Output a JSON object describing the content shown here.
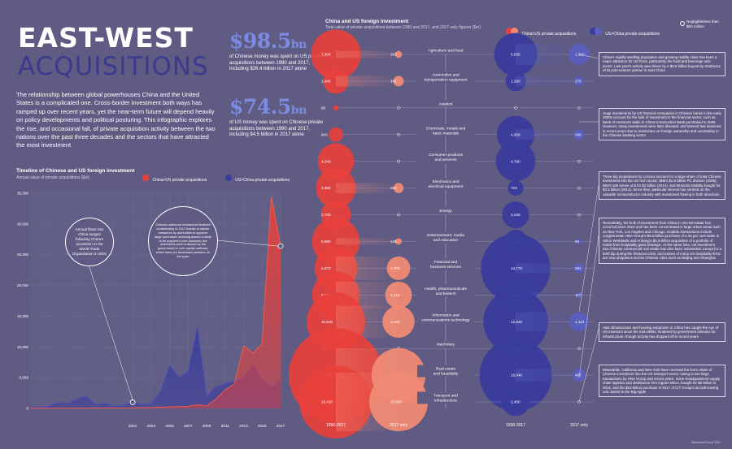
{
  "header": {
    "title_line1": "EAST-WEST",
    "title_line2_pre": "ACQ",
    "title_line2_hl": "UISITIONS",
    "intro": "The relationship between global powerhouses China and the United States is a complicated one. Cross-border investment both ways has ramped up over recent years, yet the near-term future will depend heavily on policy developments and political posturing. This infographic explores the rise, and occasional fall, of private acquisition activity between the two nations over the past three decades and the sectors that have attracted the most investment"
  },
  "stats": {
    "stat1_value": "$98.5",
    "stat1_unit": "bn",
    "stat1_text": "of Chinese money was spent on US private acquisitions between 1990 and 2017, including $26.4 billion in 2017 alone",
    "stat2_value": "$74.5",
    "stat2_unit": "bn",
    "stat2_text": "of US money was spent on Chinese private acquisitions between 1990 and 2017, including $4.5 billion in 2017 alone"
  },
  "colors": {
    "background": "#5f5b83",
    "china_us": "#e8403b",
    "us_china": "#3a3c9c",
    "china_us_light": "#f08a74",
    "us_china_light": "#5a5fc0"
  },
  "chart_data": [
    {
      "type": "area",
      "title": "Timeline of Chinese and US foreign investment",
      "subtitle": "Annual value of private acquisitions ($m)",
      "legend": [
        "China>US private acquisitions",
        "US>China private acquisitions"
      ],
      "x": [
        1990,
        1991,
        1992,
        1993,
        1994,
        1995,
        1996,
        1997,
        1998,
        1999,
        2000,
        2001,
        2002,
        2003,
        2004,
        2005,
        2006,
        2007,
        2008,
        2009,
        2010,
        2011,
        2012,
        2013,
        2014,
        2015,
        2016,
        2017
      ],
      "xticks": [
        "2001",
        "2003",
        "2005",
        "2007",
        "2009",
        "2011",
        "2013",
        "2015",
        "2017"
      ],
      "yticks": [
        "0",
        "5,000",
        "10,000",
        "15,000",
        "20,000",
        "25,000",
        "30,000",
        "35,000"
      ],
      "ylim": [
        0,
        35000
      ],
      "series": [
        {
          "name": "China>US private acquisitions",
          "values": [
            20,
            40,
            30,
            50,
            40,
            60,
            30,
            80,
            60,
            90,
            70,
            100,
            120,
            150,
            200,
            250,
            300,
            350,
            600,
            400,
            1500,
            3000,
            4000,
            10200,
            9000,
            10500,
            34500,
            26400
          ]
        },
        {
          "name": "US>China private acquisitions",
          "values": [
            100,
            200,
            400,
            1000,
            800,
            1500,
            2000,
            600,
            800,
            400,
            500,
            1000,
            600,
            800,
            2600,
            7000,
            5000,
            6000,
            13200,
            2000,
            3500,
            4000,
            4500,
            5000,
            7000,
            4800,
            3500,
            4500
          ]
        }
      ],
      "annotations": [
        "Annual flows into China surged following China's accession to the World Trade Organization in 2001",
        "Chinese outbound investment declined considerably in 2017 thanks to stricter measures by authorities to approve large purchases involving assets outside of an acquirer's core business; the restrictions were enforced by the government to curb capital outflows, which have put downward pressure on the yuan"
      ]
    },
    {
      "type": "scatter",
      "title": "China and US foreign investment",
      "subtitle": "Total value of private acquisitions between 1990 and 2017, and 2017-only figures ($m)",
      "legend": [
        "China>US private acquisitions",
        "US>China private acquisitions"
      ],
      "legend_note": "Negligible/less than $50 million",
      "column_headers": [
        "1990-2017",
        "2017 only",
        "1990-2017",
        "2017 only"
      ],
      "sectors": [
        {
          "name": "Agriculture and food",
          "china_total": 7600,
          "china_2017": 153,
          "us_total": 5630,
          "us_2017": 1310
        },
        {
          "name": "Automotive and transportation equipment",
          "china_total": 1940,
          "china_2017": 341,
          "us_total": 1260,
          "us_2017": 278
        },
        {
          "name": "Aviation",
          "china_total": 96,
          "china_2017": 0,
          "us_total": 0,
          "us_2017": 0
        },
        {
          "name": "Chemicals, metals and basic materials",
          "china_total": 643,
          "china_2017": 0,
          "us_total": 4300,
          "us_2017": 348
        },
        {
          "name": "Consumer products and services",
          "china_total": 4040,
          "china_2017": 0,
          "us_total": 4790,
          "us_2017": 0
        },
        {
          "name": "Electronics and electrical equipment",
          "china_total": 4880,
          "china_2017": 313,
          "us_total": 723,
          "us_2017": 0
        },
        {
          "name": "Energy",
          "china_total": 2730,
          "china_2017": 0,
          "us_total": 2240,
          "us_2017": 0
        },
        {
          "name": "Entertainment, media and education",
          "china_total": 6990,
          "china_2017": 129,
          "us_total": 1706,
          "us_2017": 93
        },
        {
          "name": "Financial and business services",
          "china_total": 5570,
          "china_2017": 1700,
          "us_total": 14770,
          "us_2017": 282
        },
        {
          "name": "Health, pharmaceuticals and biotech",
          "china_total": 6930,
          "china_2017": 2210,
          "us_total": 5050,
          "us_2017": 117
        },
        {
          "name": "Information and communications technology",
          "china_total": 10530,
          "china_2017": 3160,
          "us_total": 12840,
          "us_2017": 1113
        },
        {
          "name": "Machinery",
          "china_total": 318,
          "china_2017": 0,
          "us_total": 2180,
          "us_2017": 0
        },
        {
          "name": "Real estate and hospitality",
          "china_total": 27350,
          "china_2017": 8990,
          "us_total": 16040,
          "us_2017": 497
        },
        {
          "name": "Transport and infrastructure",
          "china_total": 16410,
          "china_2017": 10580,
          "us_total": 2450,
          "us_2017": 0
        }
      ],
      "value_labels": {
        "china_total": [
          "7,600",
          "1,940",
          "96",
          "643",
          "4,040",
          "4,880",
          "2,730",
          "6,990",
          "5,570",
          "6,930",
          "10,530",
          "318",
          "27,350",
          "16,410"
        ],
        "china_2017": [
          "153",
          "341",
          "",
          "",
          "",
          "313",
          "",
          "129",
          "1,700",
          "2,210",
          "3,160",
          "",
          "8,990",
          "10,580"
        ],
        "us_total": [
          "5,630",
          "1,260",
          "",
          "4,300",
          "4,790",
          "723",
          "2,240",
          "1,706",
          "14,770",
          "5,050",
          "12,840",
          "2,180",
          "16,040",
          "2,450"
        ],
        "us_2017": [
          "1,310",
          "278",
          "",
          "348",
          "",
          "",
          "",
          "93",
          "282",
          "117",
          "1,113",
          "",
          "497",
          ""
        ]
      }
    }
  ],
  "notes": [
    "China's rapidly swelling population and growing middle class has been a major attraction for US firms, particularly the food and beverage sub-sector. Last year's activity was driven by a $3.5 billion buyout by Starbucks of its joint-venture partner in east China",
    "Huge investments by US financial companies in Chinese banks in the early 2000s account for the bulk of investment in the financial sector, such as Bank of America's stake in China Construction Bank purchased in 2005. However, many investments were later divested, and interest has lessened in recent years due to restrictions on foreign ownership and uncertainty in the Chinese banking sector",
    "Three big acquisitions by Lenovo account for a large share of total Chinese investment into the US tech sector: IBM's $1.8 billion PC division (2005), IBM's x86 server unit for $2 billion (2014), and Motorola Mobility bought for $2.9 billion (2014). Since then, particular interest has centred on the valuable semiconductor industry with investment flowing in both directions",
    "Remarkably, the bulk of investment from China in US real estate has occurred since 2010 and has been concentrated in large urban areas such as New York, Los Angeles and Chicago. Notable transactions include conglomerate HNA Group's $6.5-billion purchase of a 25 per cent stake in Hilton Worldwide and Anbang's $5.5-billion acquisition of a portfolio of hotels from hospitality giant Strategic. At the same time, US investment into Chinese commercial real estate has also been substantial, except for a brief dip during the financial crisis, and names of many US hospitality firms are now ubiquitous across Chinese cities such as Beijing and Shanghai",
    "Vast infrastructure and housing expansion in China has caught the eye of US investors since the mid-1990s, hindered by government stimulus for infrastructure, though activity has dropped off in recent years",
    "Meanwhile, California and New York have received the lion's share of Chinese investment into the US transport sector, owing to two large transactions by HNA Group and recent years: Irvine-headquartered supply chain logistics and distribution firm Ingram Micro, bought for $6 billion in 2016, and the $10-billion purchase in 2017 of CIT Group's aircraft leasing unit, based in the Big Apple"
  ],
  "credit": "Raconteur Group 2018"
}
